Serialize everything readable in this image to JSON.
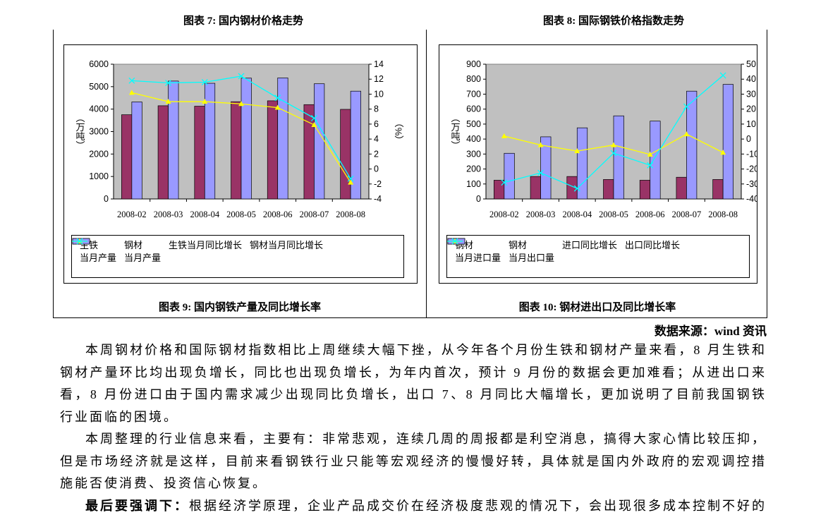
{
  "header": {
    "left": "图表 7: 国内钢材价格走势",
    "right": "图表 8: 国际钢铁价格指数走势"
  },
  "chart_data": [
    {
      "type": "bar",
      "title": "图表 9: 国内钢铁产量及同比增长率",
      "y_label": "（万吨）",
      "y2_label": "（%）",
      "categories": [
        "2008-02",
        "2008-03",
        "2008-04",
        "2008-05",
        "2008-06",
        "2008-07",
        "2008-08"
      ],
      "ylim": [
        0,
        6000
      ],
      "yticks": [
        0,
        1000,
        2000,
        3000,
        4000,
        5000,
        6000
      ],
      "y2lim": [
        -4,
        14
      ],
      "y2ticks": [
        -4,
        -2,
        0,
        2,
        4,
        6,
        8,
        10,
        12,
        14
      ],
      "series": [
        {
          "name": "生铁\n当月产量",
          "type": "bar",
          "color": "#993366",
          "values": [
            3750,
            4150,
            4130,
            4330,
            4370,
            4200,
            3990
          ]
        },
        {
          "name": "钢材\n当月产量",
          "type": "bar",
          "color": "#9999ff",
          "values": [
            4320,
            5250,
            5150,
            5380,
            5390,
            5130,
            4800
          ]
        },
        {
          "name": "生铁当月同比增长",
          "type": "line",
          "marker": "triangle",
          "axis": "y2",
          "color": "#ffff00",
          "values": [
            10.2,
            9,
            9,
            8.7,
            8.2,
            5.9,
            -1.8
          ]
        },
        {
          "name": "钢材当月同比增长",
          "type": "line",
          "marker": "x",
          "axis": "y2",
          "color": "#00ffff",
          "values": [
            11.8,
            11.5,
            11.6,
            12.4,
            9.5,
            6.8,
            -1.3
          ]
        }
      ]
    },
    {
      "type": "bar",
      "title": "图表 10: 钢材进出口及同比增长率",
      "y_label": "（万吨）",
      "y2_label": "（%）",
      "categories": [
        "2008-02",
        "2008-03",
        "2008-04",
        "2008-05",
        "2008-06",
        "2008-07",
        "2008-08"
      ],
      "ylim": [
        0,
        900
      ],
      "yticks": [
        0,
        100,
        200,
        300,
        400,
        500,
        600,
        700,
        800,
        900
      ],
      "y2lim": [
        -40,
        50
      ],
      "y2ticks": [
        -40,
        -30,
        -20,
        -10,
        0,
        10,
        20,
        30,
        40,
        50
      ],
      "series": [
        {
          "name": "钢材\n当月进口量",
          "type": "bar",
          "color": "#993366",
          "values": [
            125,
            150,
            150,
            130,
            125,
            145,
            130
          ]
        },
        {
          "name": "钢材\n当月出口量",
          "type": "bar",
          "color": "#9999ff",
          "values": [
            305,
            415,
            475,
            555,
            520,
            720,
            765
          ]
        },
        {
          "name": "进口同比增长",
          "type": "line",
          "marker": "triangle",
          "axis": "y2",
          "color": "#ffff00",
          "values": [
            2,
            -4,
            -8,
            -4,
            -10.3,
            3.3,
            -9
          ]
        },
        {
          "name": "出口同比增长",
          "type": "line",
          "marker": "x",
          "axis": "y2",
          "color": "#00ffff",
          "values": [
            -29,
            -22.6,
            -33,
            -9.4,
            -17.5,
            21.7,
            42.5
          ]
        }
      ]
    }
  ],
  "source": "数据来源：wind 资讯",
  "paragraphs": [
    {
      "text": "本周钢材价格和国际钢材指数相比上周继续大幅下挫，从今年各个月份生铁和钢材产量来看，8 月生铁和钢材产量环比均出现负增长，同比也出现负增长，为年内首次，预计 9 月份的数据会更加难看；从进出口来看，8 月份进口由于国内需求减少出现同比负增长，出口 7、8 月同比大幅增长，更加说明了目前我国钢铁行业面临的困境。"
    },
    {
      "text": "本周整理的行业信息来看，主要有：非常悲观，连续几周的周报都是利空消息，搞得大家心情比较压抑，但是市场经济就是这样，目前来看钢铁行业只能等宏观经济的慢慢好转，具体就是国内外政府的宏观调控措施能否使消费、投资信心恢复。"
    },
    {
      "bold": "最后要强调下：",
      "text": "根据经济学原理，企业产品成交价在经济极度悲观的情况下，会出现很多成本控制不好的"
    }
  ]
}
